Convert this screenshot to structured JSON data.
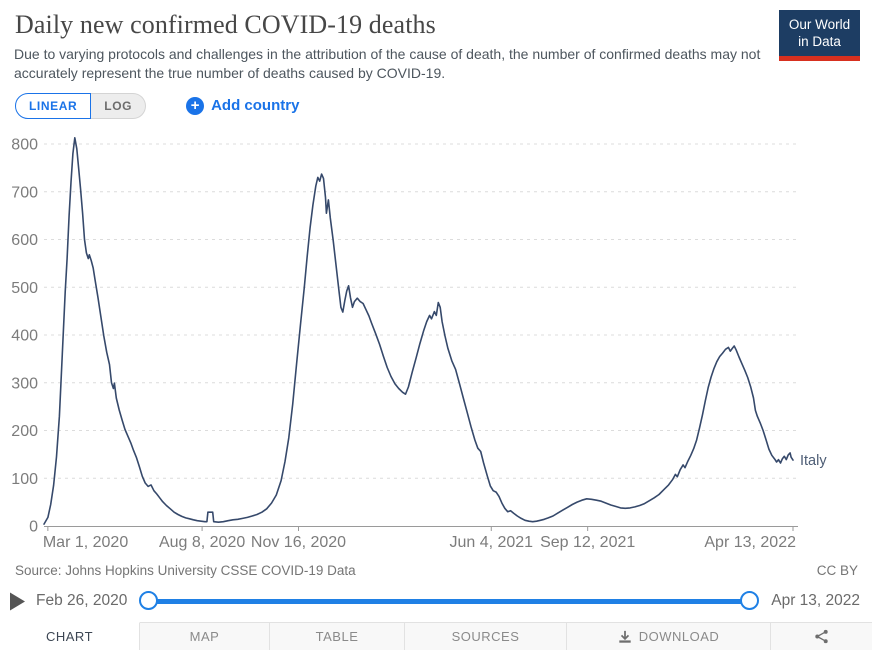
{
  "header": {
    "title": "Daily new confirmed COVID-19 deaths",
    "subtitle": "Due to varying protocols and challenges in the attribution of the cause of death, the number of confirmed deaths may not accurately represent the true number of deaths caused by COVID-19.",
    "logo_line1": "Our World",
    "logo_line2": "in Data"
  },
  "controls": {
    "linear_label": "LINEAR",
    "log_label": "LOG",
    "add_country_label": "Add country",
    "plus_glyph": "+"
  },
  "chart_data": {
    "type": "line",
    "title": "Daily new confirmed COVID-19 deaths",
    "x_range": [
      "2020-02-26",
      "2022-04-13"
    ],
    "ylim": [
      0,
      800
    ],
    "y_ticks": [
      0,
      100,
      200,
      300,
      400,
      500,
      600,
      700,
      800
    ],
    "x_ticks": [
      {
        "date": "2020-03-01",
        "label": "Mar 1, 2020"
      },
      {
        "date": "2020-08-08",
        "label": "Aug 8, 2020"
      },
      {
        "date": "2020-11-16",
        "label": "Nov 16, 2020"
      },
      {
        "date": "2021-06-04",
        "label": "Jun 4, 2021"
      },
      {
        "date": "2021-09-12",
        "label": "Sep 12, 2021"
      },
      {
        "date": "2022-04-13",
        "label": "Apr 13, 2022"
      }
    ],
    "grid": "horizontal-dashed",
    "legend_position": "end-of-line",
    "series": [
      {
        "name": "Italy",
        "color": "#36496b",
        "label_color": "#4d5d75",
        "points": [
          [
            "2020-02-26",
            4
          ],
          [
            "2020-03-01",
            18
          ],
          [
            "2020-03-04",
            45
          ],
          [
            "2020-03-07",
            85
          ],
          [
            "2020-03-10",
            145
          ],
          [
            "2020-03-13",
            230
          ],
          [
            "2020-03-16",
            360
          ],
          [
            "2020-03-19",
            490
          ],
          [
            "2020-03-21",
            560
          ],
          [
            "2020-03-23",
            650
          ],
          [
            "2020-03-25",
            720
          ],
          [
            "2020-03-27",
            780
          ],
          [
            "2020-03-29",
            813
          ],
          [
            "2020-03-31",
            790
          ],
          [
            "2020-04-02",
            748
          ],
          [
            "2020-04-04",
            705
          ],
          [
            "2020-04-06",
            655
          ],
          [
            "2020-04-08",
            600
          ],
          [
            "2020-04-10",
            572
          ],
          [
            "2020-04-12",
            560
          ],
          [
            "2020-04-13",
            568
          ],
          [
            "2020-04-15",
            556
          ],
          [
            "2020-04-17",
            540
          ],
          [
            "2020-04-19",
            515
          ],
          [
            "2020-04-22",
            478
          ],
          [
            "2020-04-25",
            438
          ],
          [
            "2020-04-28",
            398
          ],
          [
            "2020-05-01",
            364
          ],
          [
            "2020-05-04",
            338
          ],
          [
            "2020-05-06",
            300
          ],
          [
            "2020-05-08",
            288
          ],
          [
            "2020-05-09",
            299
          ],
          [
            "2020-05-11",
            268
          ],
          [
            "2020-05-14",
            243
          ],
          [
            "2020-05-17",
            222
          ],
          [
            "2020-05-20",
            202
          ],
          [
            "2020-05-23",
            188
          ],
          [
            "2020-05-26",
            174
          ],
          [
            "2020-05-29",
            158
          ],
          [
            "2020-06-01",
            143
          ],
          [
            "2020-06-04",
            124
          ],
          [
            "2020-06-07",
            104
          ],
          [
            "2020-06-10",
            90
          ],
          [
            "2020-06-13",
            83
          ],
          [
            "2020-06-16",
            86
          ],
          [
            "2020-06-19",
            74
          ],
          [
            "2020-06-22",
            67
          ],
          [
            "2020-06-25",
            59
          ],
          [
            "2020-06-28",
            51
          ],
          [
            "2020-07-02",
            43
          ],
          [
            "2020-07-06",
            36
          ],
          [
            "2020-07-10",
            29
          ],
          [
            "2020-07-14",
            24
          ],
          [
            "2020-07-18",
            20
          ],
          [
            "2020-07-22",
            17
          ],
          [
            "2020-07-26",
            15
          ],
          [
            "2020-07-30",
            13
          ],
          [
            "2020-08-03",
            11
          ],
          [
            "2020-08-07",
            10
          ],
          [
            "2020-08-11",
            9
          ],
          [
            "2020-08-13",
            9
          ],
          [
            "2020-08-14",
            29
          ],
          [
            "2020-08-19",
            29
          ],
          [
            "2020-08-20",
            9
          ],
          [
            "2020-08-25",
            8
          ],
          [
            "2020-08-30",
            9
          ],
          [
            "2020-09-04",
            11
          ],
          [
            "2020-09-09",
            13
          ],
          [
            "2020-09-14",
            14
          ],
          [
            "2020-09-19",
            16
          ],
          [
            "2020-09-24",
            18
          ],
          [
            "2020-09-29",
            21
          ],
          [
            "2020-10-04",
            24
          ],
          [
            "2020-10-09",
            29
          ],
          [
            "2020-10-14",
            36
          ],
          [
            "2020-10-19",
            48
          ],
          [
            "2020-10-24",
            65
          ],
          [
            "2020-10-29",
            95
          ],
          [
            "2020-11-02",
            135
          ],
          [
            "2020-11-06",
            185
          ],
          [
            "2020-11-10",
            255
          ],
          [
            "2020-11-14",
            340
          ],
          [
            "2020-11-18",
            420
          ],
          [
            "2020-11-22",
            500
          ],
          [
            "2020-11-25",
            565
          ],
          [
            "2020-11-28",
            625
          ],
          [
            "2020-12-01",
            672
          ],
          [
            "2020-12-04",
            712
          ],
          [
            "2020-12-06",
            730
          ],
          [
            "2020-12-08",
            722
          ],
          [
            "2020-12-10",
            737
          ],
          [
            "2020-12-12",
            728
          ],
          [
            "2020-12-14",
            688
          ],
          [
            "2020-12-15",
            655
          ],
          [
            "2020-12-17",
            683
          ],
          [
            "2020-12-19",
            645
          ],
          [
            "2020-12-22",
            598
          ],
          [
            "2020-12-25",
            545
          ],
          [
            "2020-12-28",
            492
          ],
          [
            "2020-12-30",
            458
          ],
          [
            "2021-01-01",
            448
          ],
          [
            "2021-01-03",
            472
          ],
          [
            "2021-01-05",
            492
          ],
          [
            "2021-01-07",
            503
          ],
          [
            "2021-01-09",
            478
          ],
          [
            "2021-01-11",
            458
          ],
          [
            "2021-01-13",
            470
          ],
          [
            "2021-01-16",
            477
          ],
          [
            "2021-01-19",
            470
          ],
          [
            "2021-01-22",
            466
          ],
          [
            "2021-01-25",
            453
          ],
          [
            "2021-01-28",
            440
          ],
          [
            "2021-01-31",
            424
          ],
          [
            "2021-02-04",
            403
          ],
          [
            "2021-02-08",
            381
          ],
          [
            "2021-02-12",
            356
          ],
          [
            "2021-02-16",
            332
          ],
          [
            "2021-02-20",
            313
          ],
          [
            "2021-02-24",
            298
          ],
          [
            "2021-02-28",
            288
          ],
          [
            "2021-03-04",
            280
          ],
          [
            "2021-03-07",
            276
          ],
          [
            "2021-03-10",
            291
          ],
          [
            "2021-03-14",
            322
          ],
          [
            "2021-03-18",
            352
          ],
          [
            "2021-03-22",
            382
          ],
          [
            "2021-03-26",
            410
          ],
          [
            "2021-03-29",
            428
          ],
          [
            "2021-04-01",
            441
          ],
          [
            "2021-04-03",
            434
          ],
          [
            "2021-04-06",
            449
          ],
          [
            "2021-04-08",
            441
          ],
          [
            "2021-04-10",
            468
          ],
          [
            "2021-04-12",
            458
          ],
          [
            "2021-04-14",
            428
          ],
          [
            "2021-04-17",
            398
          ],
          [
            "2021-04-20",
            372
          ],
          [
            "2021-04-24",
            346
          ],
          [
            "2021-04-28",
            328
          ],
          [
            "2021-05-02",
            298
          ],
          [
            "2021-05-06",
            268
          ],
          [
            "2021-05-10",
            238
          ],
          [
            "2021-05-14",
            208
          ],
          [
            "2021-05-18",
            180
          ],
          [
            "2021-05-21",
            163
          ],
          [
            "2021-05-24",
            156
          ],
          [
            "2021-05-27",
            132
          ],
          [
            "2021-05-31",
            104
          ],
          [
            "2021-06-03",
            84
          ],
          [
            "2021-06-06",
            74
          ],
          [
            "2021-06-09",
            71
          ],
          [
            "2021-06-12",
            62
          ],
          [
            "2021-06-15",
            48
          ],
          [
            "2021-06-18",
            37
          ],
          [
            "2021-06-21",
            30
          ],
          [
            "2021-06-24",
            32
          ],
          [
            "2021-06-27",
            27
          ],
          [
            "2021-07-01",
            21
          ],
          [
            "2021-07-05",
            16
          ],
          [
            "2021-07-09",
            12
          ],
          [
            "2021-07-13",
            10
          ],
          [
            "2021-07-17",
            9
          ],
          [
            "2021-07-21",
            10
          ],
          [
            "2021-07-25",
            12
          ],
          [
            "2021-07-29",
            14
          ],
          [
            "2021-08-02",
            17
          ],
          [
            "2021-08-07",
            21
          ],
          [
            "2021-08-12",
            27
          ],
          [
            "2021-08-17",
            33
          ],
          [
            "2021-08-22",
            39
          ],
          [
            "2021-08-27",
            45
          ],
          [
            "2021-09-01",
            50
          ],
          [
            "2021-09-06",
            54
          ],
          [
            "2021-09-11",
            57
          ],
          [
            "2021-09-16",
            56
          ],
          [
            "2021-09-21",
            54
          ],
          [
            "2021-09-26",
            52
          ],
          [
            "2021-10-01",
            48
          ],
          [
            "2021-10-06",
            44
          ],
          [
            "2021-10-11",
            41
          ],
          [
            "2021-10-16",
            38
          ],
          [
            "2021-10-21",
            37
          ],
          [
            "2021-10-26",
            38
          ],
          [
            "2021-10-31",
            40
          ],
          [
            "2021-11-05",
            43
          ],
          [
            "2021-11-10",
            47
          ],
          [
            "2021-11-15",
            53
          ],
          [
            "2021-11-20",
            59
          ],
          [
            "2021-11-25",
            66
          ],
          [
            "2021-11-30",
            76
          ],
          [
            "2021-12-05",
            86
          ],
          [
            "2021-12-09",
            97
          ],
          [
            "2021-12-12",
            108
          ],
          [
            "2021-12-14",
            103
          ],
          [
            "2021-12-17",
            118
          ],
          [
            "2021-12-20",
            128
          ],
          [
            "2021-12-22",
            122
          ],
          [
            "2021-12-25",
            136
          ],
          [
            "2021-12-28",
            148
          ],
          [
            "2021-12-31",
            162
          ],
          [
            "2022-01-03",
            180
          ],
          [
            "2022-01-06",
            205
          ],
          [
            "2022-01-09",
            232
          ],
          [
            "2022-01-12",
            262
          ],
          [
            "2022-01-15",
            290
          ],
          [
            "2022-01-18",
            312
          ],
          [
            "2022-01-21",
            330
          ],
          [
            "2022-01-24",
            344
          ],
          [
            "2022-01-27",
            355
          ],
          [
            "2022-01-30",
            362
          ],
          [
            "2022-02-02",
            370
          ],
          [
            "2022-02-05",
            374
          ],
          [
            "2022-02-07",
            366
          ],
          [
            "2022-02-09",
            372
          ],
          [
            "2022-02-11",
            377
          ],
          [
            "2022-02-13",
            369
          ],
          [
            "2022-02-16",
            354
          ],
          [
            "2022-02-19",
            340
          ],
          [
            "2022-02-22",
            326
          ],
          [
            "2022-02-25",
            311
          ],
          [
            "2022-02-28",
            292
          ],
          [
            "2022-03-03",
            268
          ],
          [
            "2022-03-05",
            242
          ],
          [
            "2022-03-07",
            230
          ],
          [
            "2022-03-10",
            216
          ],
          [
            "2022-03-13",
            200
          ],
          [
            "2022-03-16",
            181
          ],
          [
            "2022-03-19",
            161
          ],
          [
            "2022-03-22",
            148
          ],
          [
            "2022-03-25",
            140
          ],
          [
            "2022-03-27",
            134
          ],
          [
            "2022-03-29",
            139
          ],
          [
            "2022-03-31",
            132
          ],
          [
            "2022-04-02",
            141
          ],
          [
            "2022-04-04",
            146
          ],
          [
            "2022-04-06",
            139
          ],
          [
            "2022-04-08",
            149
          ],
          [
            "2022-04-10",
            153
          ],
          [
            "2022-04-11",
            144
          ],
          [
            "2022-04-13",
            138
          ]
        ]
      }
    ]
  },
  "footer": {
    "source": "Source: Johns Hopkins University CSSE COVID-19 Data",
    "license": "CC BY"
  },
  "timeline": {
    "start_label": "Feb 26, 2020",
    "end_label": "Apr 13, 2022"
  },
  "tabs": [
    {
      "label": "CHART",
      "active": true
    },
    {
      "label": "MAP",
      "active": false
    },
    {
      "label": "TABLE",
      "active": false
    },
    {
      "label": "SOURCES",
      "active": false
    },
    {
      "label": "DOWNLOAD",
      "active": false,
      "icon": "download-icon"
    },
    {
      "label": "",
      "active": false,
      "icon": "share-icon"
    }
  ],
  "colors": {
    "accent_blue": "#1a73e8",
    "slider_blue": "#1f80e5",
    "line_color": "#36496b",
    "grid_color": "#dcdcdc",
    "axis_color": "#9a9a9a",
    "tick_text": "#7c7c7c",
    "logo_navy": "#1d3d63",
    "logo_red": "#d7301f"
  }
}
